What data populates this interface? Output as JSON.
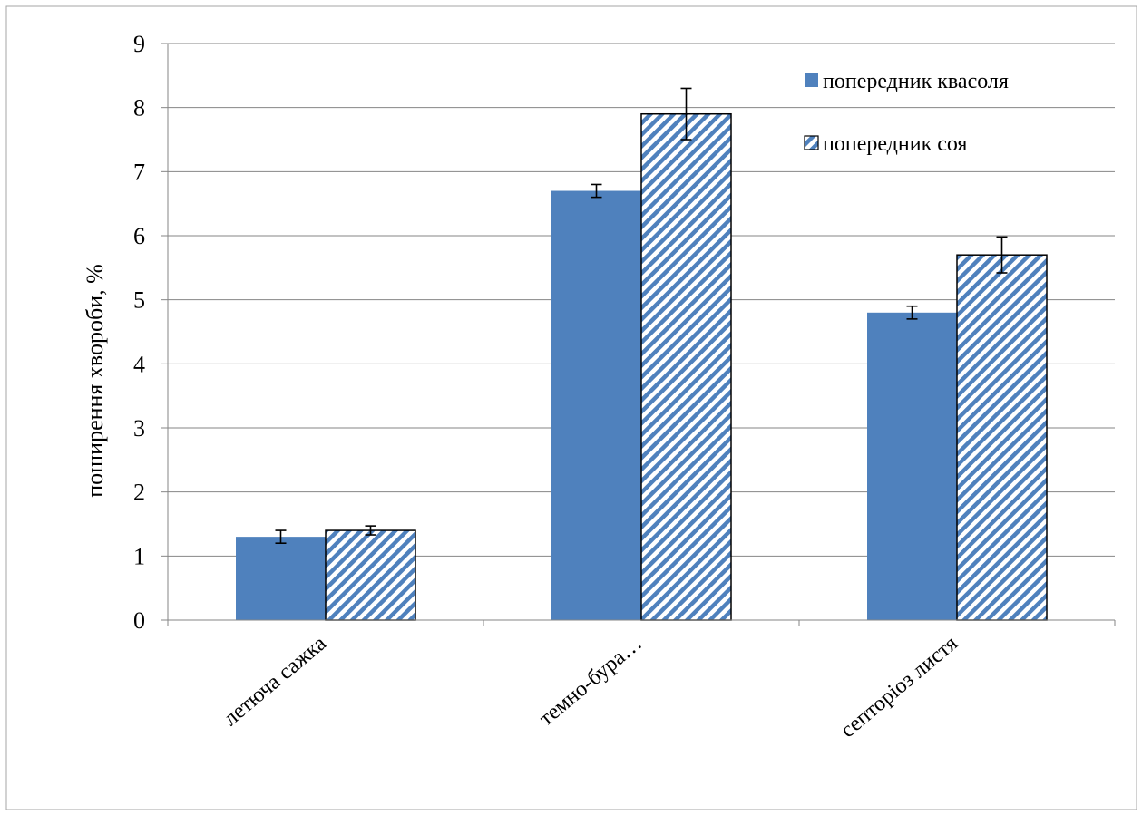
{
  "chart_data": {
    "type": "bar",
    "categories": [
      "летюча сажка",
      "темно-бура…",
      "септоріоз листя"
    ],
    "series": [
      {
        "name": "попередник квасоля",
        "values": [
          1.3,
          6.7,
          4.8
        ],
        "errors": [
          0.1,
          0.1,
          0.1
        ],
        "color": "#4f81bd",
        "pattern": "solid"
      },
      {
        "name": "попередник соя",
        "values": [
          1.4,
          7.9,
          5.7
        ],
        "errors": [
          0.07,
          0.4,
          0.28
        ],
        "color": "#4f81bd",
        "pattern": "diagonal-stripes"
      }
    ],
    "ylabel": "поширення хвороби, %",
    "xlabel": "",
    "ylim": [
      0,
      9
    ],
    "yticks": [
      "0",
      "1",
      "2",
      "3",
      "4",
      "5",
      "6",
      "7",
      "8",
      "9"
    ],
    "grid": true,
    "legend_position": "top-right"
  }
}
